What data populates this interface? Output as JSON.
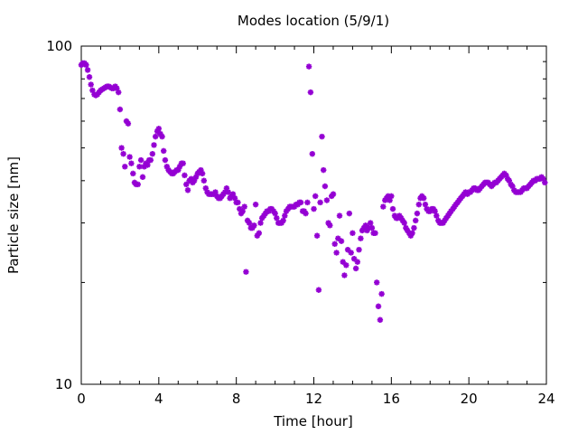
{
  "chart_data": {
    "type": "scatter",
    "title": "Modes location (5/9/1)",
    "xlabel": "Time [hour]",
    "ylabel": "Particle size [nm]",
    "xlim": [
      0,
      24
    ],
    "ylim": [
      10,
      100
    ],
    "y_scale": "log",
    "x_ticks": [
      0,
      4,
      8,
      12,
      16,
      20,
      24
    ],
    "y_ticks": [
      10,
      100
    ],
    "x_tick_labels": [
      "0",
      "4",
      "8",
      "12",
      "16",
      "20",
      "24"
    ],
    "y_tick_labels": [
      "10",
      "100"
    ],
    "grid": false,
    "marker_color": "#9400d3",
    "series": [
      {
        "points": [
          [
            0.0,
            88
          ],
          [
            0.08,
            89
          ],
          [
            0.17,
            89
          ],
          [
            0.25,
            88
          ],
          [
            0.33,
            85
          ],
          [
            0.42,
            81
          ],
          [
            0.5,
            77
          ],
          [
            0.58,
            74
          ],
          [
            0.67,
            72
          ],
          [
            0.75,
            71.5
          ],
          [
            0.83,
            72
          ],
          [
            0.92,
            73
          ],
          [
            1.0,
            74
          ],
          [
            1.08,
            74.5
          ],
          [
            1.17,
            75
          ],
          [
            1.25,
            75.5
          ],
          [
            1.33,
            76
          ],
          [
            1.42,
            76
          ],
          [
            1.5,
            75.5
          ],
          [
            1.58,
            75
          ],
          [
            1.67,
            75
          ],
          [
            1.75,
            76
          ],
          [
            1.83,
            75
          ],
          [
            1.92,
            73
          ],
          [
            2.0,
            65
          ],
          [
            2.08,
            50
          ],
          [
            2.17,
            48
          ],
          [
            2.25,
            44
          ],
          [
            2.33,
            60
          ],
          [
            2.42,
            59
          ],
          [
            2.5,
            47
          ],
          [
            2.58,
            45
          ],
          [
            2.67,
            42
          ],
          [
            2.75,
            39.5
          ],
          [
            2.83,
            39
          ],
          [
            2.92,
            39
          ],
          [
            3.0,
            44
          ],
          [
            3.08,
            46
          ],
          [
            3.17,
            41
          ],
          [
            3.25,
            44
          ],
          [
            3.33,
            45
          ],
          [
            3.42,
            44.5
          ],
          [
            3.5,
            46
          ],
          [
            3.58,
            46
          ],
          [
            3.67,
            48
          ],
          [
            3.75,
            51
          ],
          [
            3.83,
            54
          ],
          [
            3.92,
            56
          ],
          [
            4.0,
            57
          ],
          [
            4.08,
            55
          ],
          [
            4.17,
            54
          ],
          [
            4.25,
            49
          ],
          [
            4.33,
            46
          ],
          [
            4.42,
            44
          ],
          [
            4.5,
            43
          ],
          [
            4.58,
            42.5
          ],
          [
            4.67,
            42
          ],
          [
            4.75,
            42
          ],
          [
            4.83,
            42.5
          ],
          [
            4.92,
            43
          ],
          [
            5.0,
            43
          ],
          [
            5.08,
            44
          ],
          [
            5.17,
            45
          ],
          [
            5.25,
            45
          ],
          [
            5.33,
            41.5
          ],
          [
            5.42,
            39
          ],
          [
            5.5,
            37.5
          ],
          [
            5.58,
            40
          ],
          [
            5.67,
            40.5
          ],
          [
            5.75,
            39.5
          ],
          [
            5.83,
            40
          ],
          [
            5.92,
            41
          ],
          [
            6.0,
            42
          ],
          [
            6.08,
            42.5
          ],
          [
            6.17,
            43
          ],
          [
            6.25,
            42
          ],
          [
            6.33,
            40
          ],
          [
            6.42,
            38
          ],
          [
            6.5,
            37
          ],
          [
            6.58,
            36.5
          ],
          [
            6.67,
            36.5
          ],
          [
            6.75,
            36.5
          ],
          [
            6.83,
            36.5
          ],
          [
            6.92,
            37
          ],
          [
            7.0,
            36
          ],
          [
            7.08,
            35.5
          ],
          [
            7.17,
            35.5
          ],
          [
            7.25,
            36
          ],
          [
            7.33,
            36.5
          ],
          [
            7.42,
            37
          ],
          [
            7.5,
            38
          ],
          [
            7.58,
            37
          ],
          [
            7.67,
            35.5
          ],
          [
            7.75,
            36
          ],
          [
            7.83,
            36.5
          ],
          [
            7.92,
            35.5
          ],
          [
            8.0,
            34.5
          ],
          [
            8.08,
            34.5
          ],
          [
            8.17,
            33
          ],
          [
            8.25,
            32
          ],
          [
            8.33,
            32.5
          ],
          [
            8.42,
            33.5
          ],
          [
            8.5,
            21.5
          ],
          [
            8.58,
            30.5
          ],
          [
            8.67,
            30
          ],
          [
            8.75,
            29
          ],
          [
            8.83,
            29
          ],
          [
            8.92,
            29.5
          ],
          [
            9.0,
            34
          ],
          [
            9.08,
            27.5
          ],
          [
            9.17,
            28
          ],
          [
            9.25,
            30
          ],
          [
            9.33,
            31
          ],
          [
            9.42,
            31.5
          ],
          [
            9.5,
            32
          ],
          [
            9.58,
            32.5
          ],
          [
            9.67,
            32.5
          ],
          [
            9.75,
            33
          ],
          [
            9.83,
            33
          ],
          [
            9.92,
            32.5
          ],
          [
            10.0,
            32
          ],
          [
            10.08,
            31
          ],
          [
            10.17,
            30
          ],
          [
            10.25,
            30
          ],
          [
            10.33,
            30
          ],
          [
            10.42,
            30.5
          ],
          [
            10.5,
            31.5
          ],
          [
            10.58,
            32.5
          ],
          [
            10.67,
            33
          ],
          [
            10.75,
            33.5
          ],
          [
            10.83,
            33.5
          ],
          [
            10.92,
            33.5
          ],
          [
            11.0,
            33.5
          ],
          [
            11.08,
            34
          ],
          [
            11.17,
            34
          ],
          [
            11.25,
            34.5
          ],
          [
            11.33,
            34.5
          ],
          [
            11.42,
            32.5
          ],
          [
            11.5,
            32.5
          ],
          [
            11.58,
            32
          ],
          [
            11.67,
            34.5
          ],
          [
            11.75,
            87
          ],
          [
            11.83,
            73
          ],
          [
            11.92,
            48
          ],
          [
            12.0,
            33
          ],
          [
            12.08,
            36
          ],
          [
            12.17,
            27.5
          ],
          [
            12.25,
            19
          ],
          [
            12.33,
            34.5
          ],
          [
            12.42,
            54
          ],
          [
            12.5,
            43
          ],
          [
            12.58,
            38.5
          ],
          [
            12.67,
            35
          ],
          [
            12.75,
            30
          ],
          [
            12.83,
            29.5
          ],
          [
            12.92,
            36
          ],
          [
            13.0,
            36.5
          ],
          [
            13.08,
            26
          ],
          [
            13.17,
            24.5
          ],
          [
            13.25,
            27
          ],
          [
            13.33,
            31.5
          ],
          [
            13.42,
            26.5
          ],
          [
            13.5,
            23
          ],
          [
            13.58,
            21
          ],
          [
            13.67,
            22.5
          ],
          [
            13.75,
            25
          ],
          [
            13.83,
            32
          ],
          [
            13.92,
            24.5
          ],
          [
            14.0,
            28
          ],
          [
            14.08,
            23.5
          ],
          [
            14.17,
            22
          ],
          [
            14.25,
            23
          ],
          [
            14.33,
            25
          ],
          [
            14.42,
            27
          ],
          [
            14.5,
            28.5
          ],
          [
            14.58,
            29
          ],
          [
            14.67,
            29.5
          ],
          [
            14.75,
            28.5
          ],
          [
            14.83,
            29
          ],
          [
            14.92,
            30
          ],
          [
            15.0,
            29
          ],
          [
            15.08,
            28
          ],
          [
            15.17,
            28
          ],
          [
            15.25,
            20
          ],
          [
            15.33,
            17
          ],
          [
            15.42,
            15.5
          ],
          [
            15.5,
            18.5
          ],
          [
            15.58,
            33.5
          ],
          [
            15.67,
            35
          ],
          [
            15.75,
            35.5
          ],
          [
            15.83,
            36
          ],
          [
            15.92,
            35
          ],
          [
            16.0,
            36
          ],
          [
            16.08,
            33
          ],
          [
            16.17,
            31.5
          ],
          [
            16.25,
            31
          ],
          [
            16.33,
            31
          ],
          [
            16.42,
            31.5
          ],
          [
            16.5,
            31
          ],
          [
            16.58,
            30.5
          ],
          [
            16.67,
            30
          ],
          [
            16.75,
            29
          ],
          [
            16.83,
            28.5
          ],
          [
            16.92,
            28
          ],
          [
            17.0,
            27.5
          ],
          [
            17.08,
            28
          ],
          [
            17.17,
            29
          ],
          [
            17.25,
            30.5
          ],
          [
            17.33,
            32
          ],
          [
            17.42,
            34
          ],
          [
            17.5,
            35.5
          ],
          [
            17.58,
            36
          ],
          [
            17.67,
            35.5
          ],
          [
            17.75,
            34
          ],
          [
            17.83,
            33
          ],
          [
            17.92,
            32.5
          ],
          [
            18.0,
            32.5
          ],
          [
            18.08,
            33
          ],
          [
            18.17,
            33
          ],
          [
            18.25,
            32.5
          ],
          [
            18.33,
            31.5
          ],
          [
            18.42,
            30.5
          ],
          [
            18.5,
            30
          ],
          [
            18.58,
            30
          ],
          [
            18.67,
            30
          ],
          [
            18.75,
            30.5
          ],
          [
            18.83,
            31
          ],
          [
            18.92,
            31.5
          ],
          [
            19.0,
            32
          ],
          [
            19.08,
            32.5
          ],
          [
            19.17,
            33
          ],
          [
            19.25,
            33.5
          ],
          [
            19.33,
            34
          ],
          [
            19.42,
            34.5
          ],
          [
            19.5,
            35
          ],
          [
            19.58,
            35.5
          ],
          [
            19.67,
            36
          ],
          [
            19.75,
            36.5
          ],
          [
            19.83,
            37
          ],
          [
            19.92,
            36.5
          ],
          [
            20.0,
            37
          ],
          [
            20.08,
            37
          ],
          [
            20.17,
            37.5
          ],
          [
            20.25,
            38
          ],
          [
            20.33,
            38
          ],
          [
            20.42,
            37.5
          ],
          [
            20.5,
            37.5
          ],
          [
            20.58,
            38
          ],
          [
            20.67,
            38.5
          ],
          [
            20.75,
            39
          ],
          [
            20.83,
            39.5
          ],
          [
            20.92,
            39.5
          ],
          [
            21.0,
            39.5
          ],
          [
            21.08,
            39
          ],
          [
            21.17,
            38.5
          ],
          [
            21.25,
            39
          ],
          [
            21.33,
            39.5
          ],
          [
            21.42,
            39.5
          ],
          [
            21.5,
            40
          ],
          [
            21.58,
            40.5
          ],
          [
            21.67,
            41
          ],
          [
            21.75,
            41.5
          ],
          [
            21.83,
            42
          ],
          [
            21.92,
            41.5
          ],
          [
            22.0,
            40.5
          ],
          [
            22.08,
            40
          ],
          [
            22.17,
            39
          ],
          [
            22.25,
            38.5
          ],
          [
            22.33,
            37.5
          ],
          [
            22.42,
            37
          ],
          [
            22.5,
            37
          ],
          [
            22.58,
            37
          ],
          [
            22.67,
            37
          ],
          [
            22.75,
            37.5
          ],
          [
            22.83,
            38
          ],
          [
            22.92,
            38
          ],
          [
            23.0,
            38
          ],
          [
            23.08,
            38.5
          ],
          [
            23.17,
            39
          ],
          [
            23.25,
            39.5
          ],
          [
            23.33,
            40
          ],
          [
            23.42,
            40
          ],
          [
            23.5,
            40.5
          ],
          [
            23.58,
            40.5
          ],
          [
            23.67,
            40.5
          ],
          [
            23.75,
            41
          ],
          [
            23.83,
            40.5
          ],
          [
            23.92,
            39.5
          ]
        ]
      }
    ]
  }
}
